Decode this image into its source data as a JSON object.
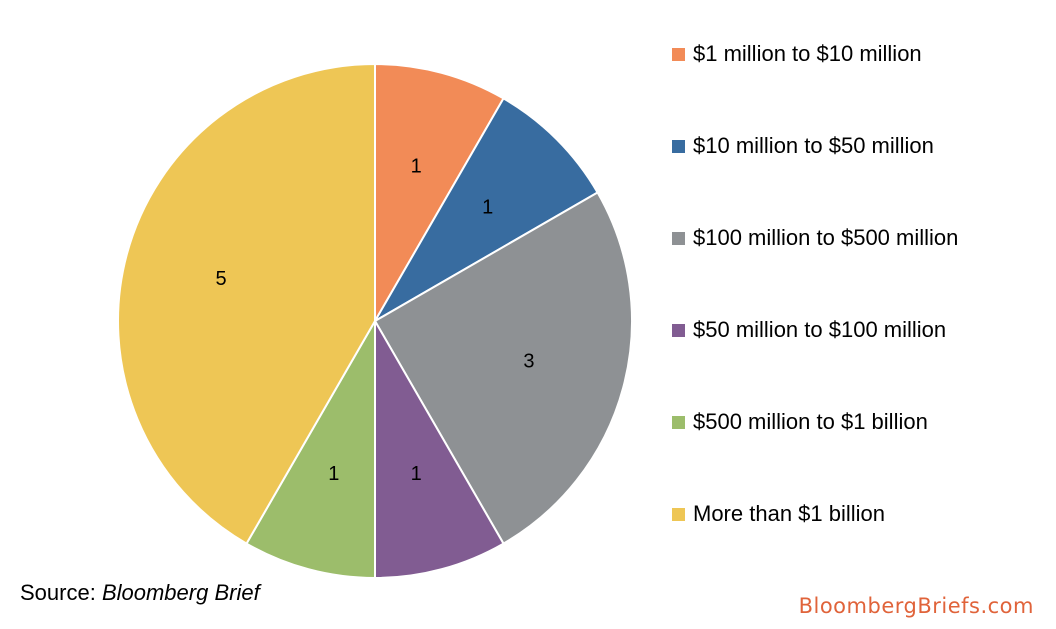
{
  "chart_data": {
    "type": "pie",
    "title": "",
    "categories": [
      "$1 million to $10 million",
      "$10 million to $50 million",
      "$100 million to $500 million",
      "$50 million to $100 million",
      "$500 million to $1 billion",
      "More than $1 billion"
    ],
    "values": [
      1,
      1,
      3,
      1,
      1,
      5
    ],
    "colors": [
      "#f28b57",
      "#386ca0",
      "#8e9194",
      "#815c92",
      "#9cbd6b",
      "#eec655"
    ],
    "data_labels": [
      "1",
      "1",
      "3",
      "1",
      "1",
      "5"
    ],
    "legend_position": "right",
    "start": "12 o'clock",
    "direction": "clockwise"
  },
  "source": {
    "prefix": "Source: ",
    "publication": "Bloomberg Brief"
  },
  "brand": "BloombergBriefs.com"
}
